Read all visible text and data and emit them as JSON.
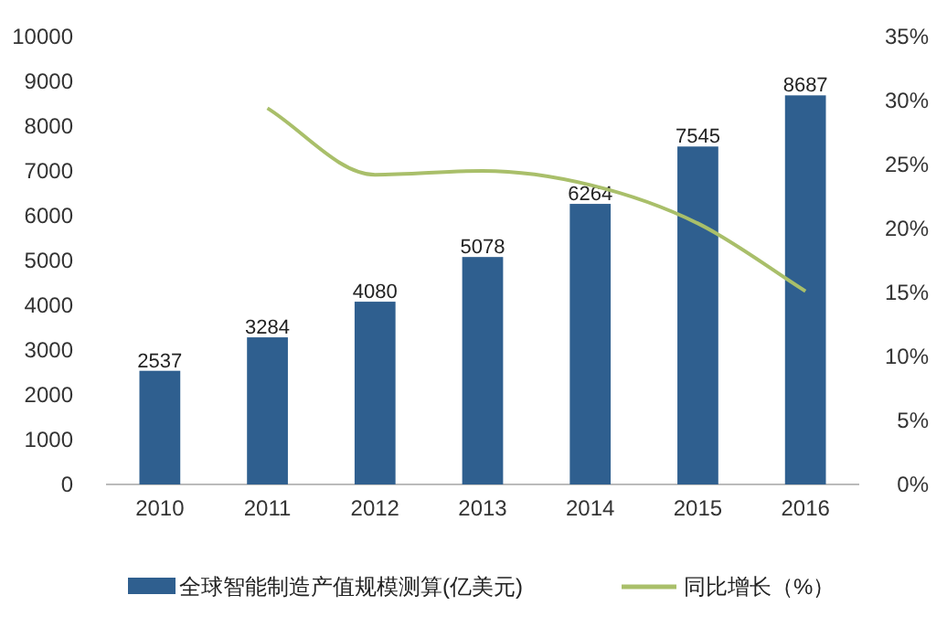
{
  "chart_data": {
    "type": "bar",
    "categories": [
      "2010",
      "2011",
      "2012",
      "2013",
      "2014",
      "2015",
      "2016"
    ],
    "series": [
      {
        "name": "全球智能制造产值规模测算(亿美元)",
        "color": "#2f5f8f",
        "values": [
          2537,
          3284,
          4080,
          5078,
          6264,
          7545,
          8687
        ],
        "value_labels": [
          "2537",
          "3284",
          "4080",
          "5078",
          "6264",
          "7545",
          "8687"
        ]
      },
      {
        "name": "同比增长（%）",
        "type": "line",
        "axis": "y2",
        "color": "#a9bf6a",
        "values": [
          null,
          29.4,
          24.2,
          24.5,
          23.4,
          20.4,
          15.1
        ]
      }
    ],
    "ylim": [
      0,
      10000
    ],
    "yticks": [
      0,
      1000,
      2000,
      3000,
      4000,
      5000,
      6000,
      7000,
      8000,
      9000,
      10000
    ],
    "y2lim": [
      0,
      35
    ],
    "y2ticks": [
      {
        "value": 0,
        "label": "0%"
      },
      {
        "value": 5,
        "label": "5%"
      },
      {
        "value": 10,
        "label": "10%"
      },
      {
        "value": 15,
        "label": "15%"
      },
      {
        "value": 20,
        "label": "20%"
      },
      {
        "value": 25,
        "label": "25%"
      },
      {
        "value": 30,
        "label": "30%"
      },
      {
        "value": 35,
        "label": "35%"
      }
    ],
    "legend": "bottom"
  }
}
